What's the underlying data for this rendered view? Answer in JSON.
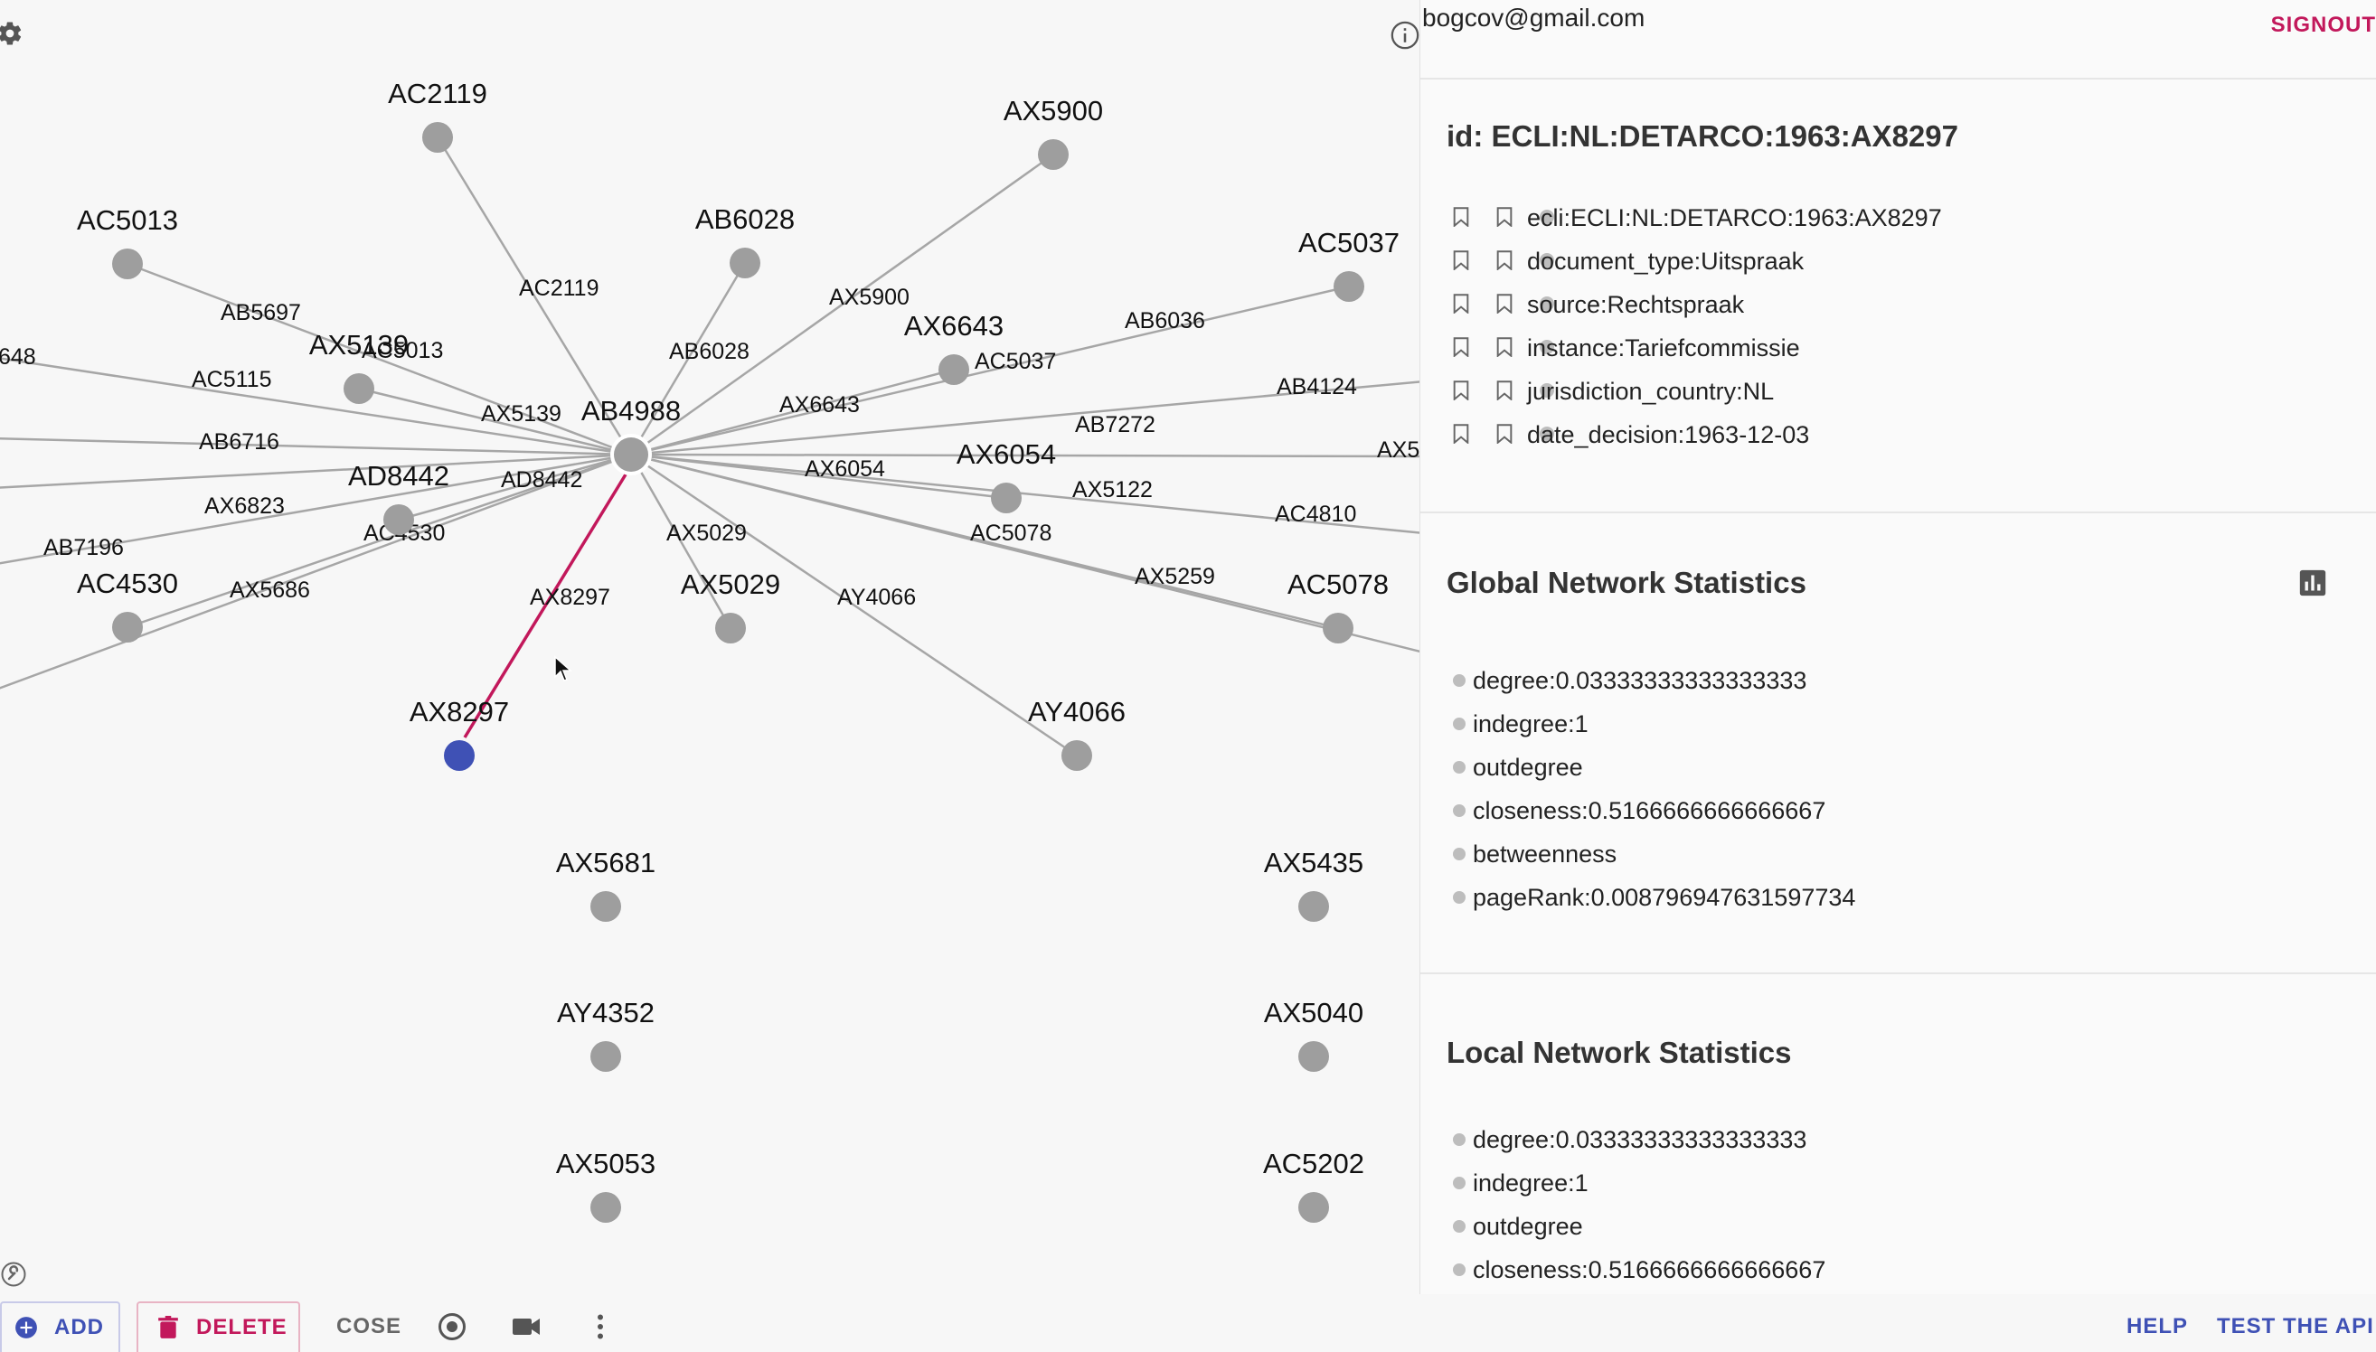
{
  "graph": {
    "nodes": [
      {
        "id": "AB4988",
        "label": "AB4988",
        "kind": "center"
      },
      {
        "id": "AC2119",
        "label": "AC2119"
      },
      {
        "id": "AX5900",
        "label": "AX5900"
      },
      {
        "id": "AC5013",
        "label": "AC5013"
      },
      {
        "id": "AB6028",
        "label": "AB6028"
      },
      {
        "id": "AC5037",
        "label": "AC5037"
      },
      {
        "id": "AX5139",
        "label": "AX5139"
      },
      {
        "id": "AX6643",
        "label": "AX6643"
      },
      {
        "id": "AD8442",
        "label": "AD8442"
      },
      {
        "id": "AX6054",
        "label": "AX6054"
      },
      {
        "id": "AC4530",
        "label": "AC4530"
      },
      {
        "id": "AX5029",
        "label": "AX5029"
      },
      {
        "id": "AC5078",
        "label": "AC5078"
      },
      {
        "id": "AX8297",
        "label": "AX8297",
        "kind": "selected"
      },
      {
        "id": "AY4066",
        "label": "AY4066"
      },
      {
        "id": "AX5681",
        "label": "AX5681"
      },
      {
        "id": "AX5435",
        "label": "AX5435"
      },
      {
        "id": "AY4352",
        "label": "AY4352"
      },
      {
        "id": "AX5040",
        "label": "AX5040"
      },
      {
        "id": "AX5053",
        "label": "AX5053"
      },
      {
        "id": "AC5202",
        "label": "AC5202"
      }
    ],
    "edge_labels": [
      "AC2119",
      "AX5900",
      "AB5697",
      "AC5013",
      "AB6028",
      "AB6036",
      "AC5037",
      "AX5139",
      "AC5115",
      "AX6643",
      "AB4124",
      "AB7272",
      "AB6716",
      "AD8442",
      "AX6054",
      "AX5122",
      "AX6823",
      "AC4530",
      "AC5078",
      "AC4810",
      "AB7196",
      "AX5029",
      "AX5686",
      "AX8297",
      "AY4066",
      "AX5259",
      "648",
      "AX5"
    ],
    "colors": {
      "node": "#9e9e9e",
      "selected_node": "#3f51b5",
      "edge": "#a6a6a6",
      "selected_edge": "#c2185b"
    }
  },
  "user": {
    "email": "bogcov@gmail.com",
    "signout": "SIGNOUT"
  },
  "document": {
    "title": "id: ECLI:NL:DETARCO:1963:AX8297",
    "properties": [
      "ecli:ECLI:NL:DETARCO:1963:AX8297",
      "document_type:Uitspraak",
      "source:Rechtspraak",
      "instance:Tariefcommissie",
      "jurisdiction_country:NL",
      "date_decision:1963-12-03"
    ]
  },
  "global_stats": {
    "title": "Global Network Statistics",
    "items": [
      "degree:0.03333333333333333",
      "indegree:1",
      "outdegree",
      "closeness:0.5166666666666667",
      "betweenness",
      "pageRank:0.008796947631597734"
    ]
  },
  "local_stats": {
    "title": "Local Network Statistics",
    "items": [
      "degree:0.03333333333333333",
      "indegree:1",
      "outdegree",
      "closeness:0.5166666666666667"
    ]
  },
  "toolbar": {
    "add": "ADD",
    "delete": "DELETE",
    "layout": "COSE",
    "help": "HELP",
    "test_api": "TEST THE API"
  },
  "icons": [
    "gear-icon",
    "info-icon",
    "wrench-icon",
    "add-circle-icon",
    "trash-icon",
    "target-icon",
    "video-camera-icon",
    "more-vert-icon",
    "bar-chart-icon",
    "bookmark-icon",
    "cursor-icon"
  ]
}
